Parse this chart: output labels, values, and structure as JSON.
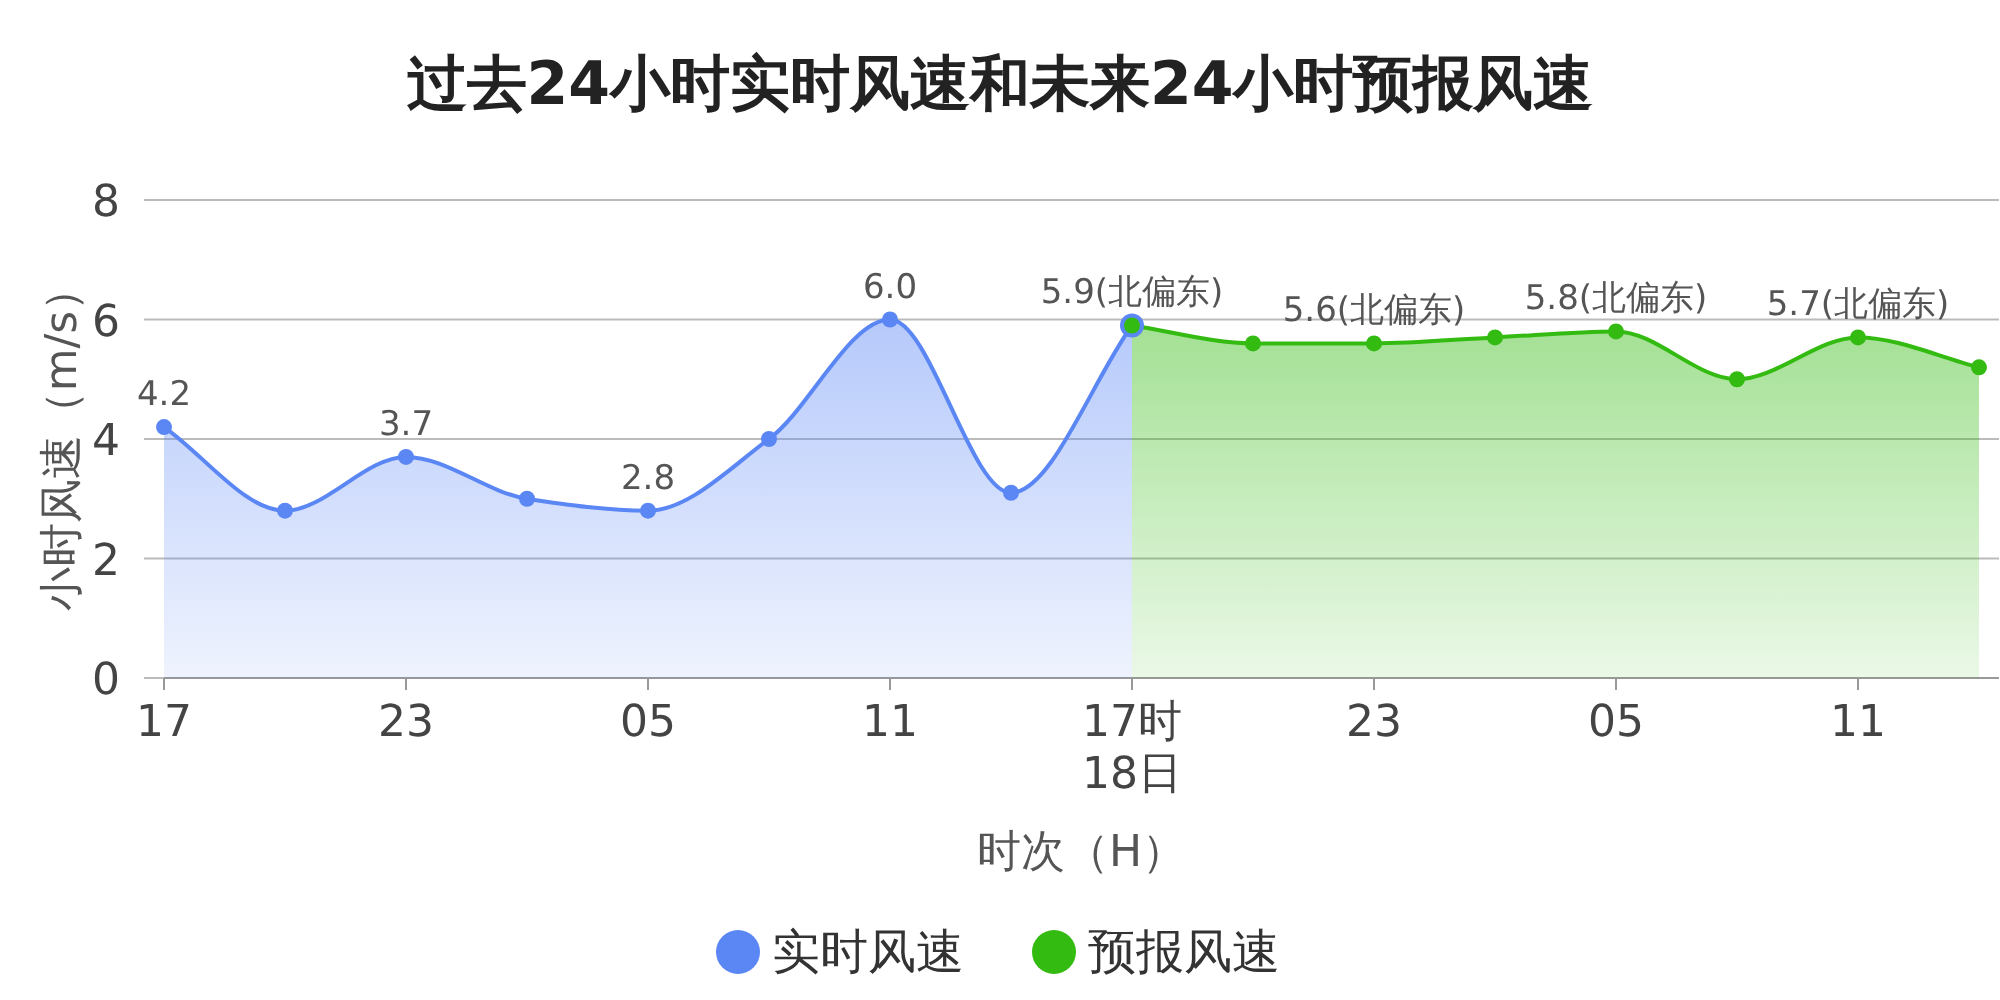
{
  "chart_data": {
    "type": "area",
    "title": "过去24小时实时风速和未来24小时预报风速",
    "xlabel": "时次（H）",
    "ylabel": "小时风速（m/s）",
    "categories": [
      "17",
      null,
      "23",
      null,
      "05",
      null,
      "11",
      null,
      "17时\n18日",
      null,
      "23",
      null,
      "05",
      null,
      "11",
      null
    ],
    "series": [
      {
        "name": "实时风速",
        "color": "#5b87f5",
        "values": [
          4.2,
          2.8,
          3.7,
          3.0,
          2.8,
          4.0,
          6.0,
          3.1,
          5.9,
          null,
          null,
          null,
          null,
          null,
          null,
          null
        ],
        "value_labels": [
          "4.2",
          null,
          "3.7",
          null,
          "2.8",
          null,
          "6.0",
          null,
          null,
          null,
          null,
          null,
          null,
          null,
          null,
          null
        ]
      },
      {
        "name": "预报风速",
        "color": "#33bb11",
        "values": [
          null,
          null,
          null,
          null,
          null,
          null,
          null,
          null,
          5.9,
          5.6,
          5.6,
          5.7,
          5.8,
          5.0,
          5.7,
          5.2
        ],
        "value_labels": [
          null,
          null,
          null,
          null,
          null,
          null,
          null,
          null,
          "5.9(北偏东)",
          null,
          "5.6(北偏东)",
          null,
          "5.8(北偏东)",
          null,
          "5.7(北偏东)",
          null
        ]
      }
    ],
    "ylim": [
      0,
      8
    ],
    "yticks": [
      0,
      2,
      4,
      6,
      8
    ],
    "grid": "y",
    "legend": "bottom",
    "marker": "circle"
  }
}
